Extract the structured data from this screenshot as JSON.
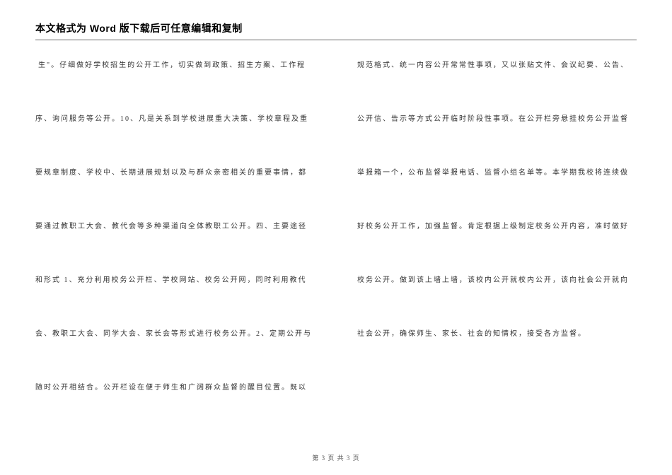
{
  "header": {
    "title": "本文格式为 Word 版下载后可任意编辑和复制"
  },
  "leftColumn": {
    "lines": [
      "生\"。仔细做好学校招生的公开工作，切实做到政策、招生方案、工作程",
      "序、询问服务等公开。10、凡是关系到学校进展重大决策、学校章程及重",
      "要规章制度、学校中、长期进展规划以及与群众亲密相关的重要事情，都",
      "要通过教职工大会、教代会等多种渠道向全体教职工公开。四、主要途径",
      "和形式 1、充分利用校务公开栏、学校网站、校务公开网，同时利用教代",
      "会、教职工大会、同学大会、家长会等形式进行校务公开。2、定期公开与",
      "随时公开相结合。公开栏设在便于师生和广阔群众监督的醒目位置。既以"
    ]
  },
  "rightColumn": {
    "lines": [
      "规范格式、统一内容公开常常性事项，又以张贴文件、会议纪要、公告、",
      "公开信、告示等方式公开临时阶段性事项。在公开栏旁悬挂校务公开监督",
      "举报箱一个，公布监督举报电话、监督小组名单等。本学期我校将连续做",
      "好校务公开工作，加强监督。肯定根据上级制定校务公开内容，准时做好",
      "校务公开。做到该上墙上墙，该校内公开就校内公开，该向社会公开就向",
      "社会公开，确保师生、家长、社会的知情权，接受各方监督。"
    ]
  },
  "footer": {
    "text": "第 3 页 共 3 页"
  },
  "style": {
    "background_color": "#ffffff",
    "header_font_family": "SimHei",
    "header_font_size": 14,
    "header_font_weight": "bold",
    "header_color": "#000000",
    "header_border_color": "#666666",
    "body_font_family": "SimSun",
    "body_font_size": 10,
    "body_color": "#333333",
    "body_letter_spacing": 2,
    "line_spacing": 60,
    "footer_font_size": 9,
    "footer_color": "#555555",
    "column_gap": 60,
    "page_padding_top": 30,
    "page_padding_sides": 50
  }
}
